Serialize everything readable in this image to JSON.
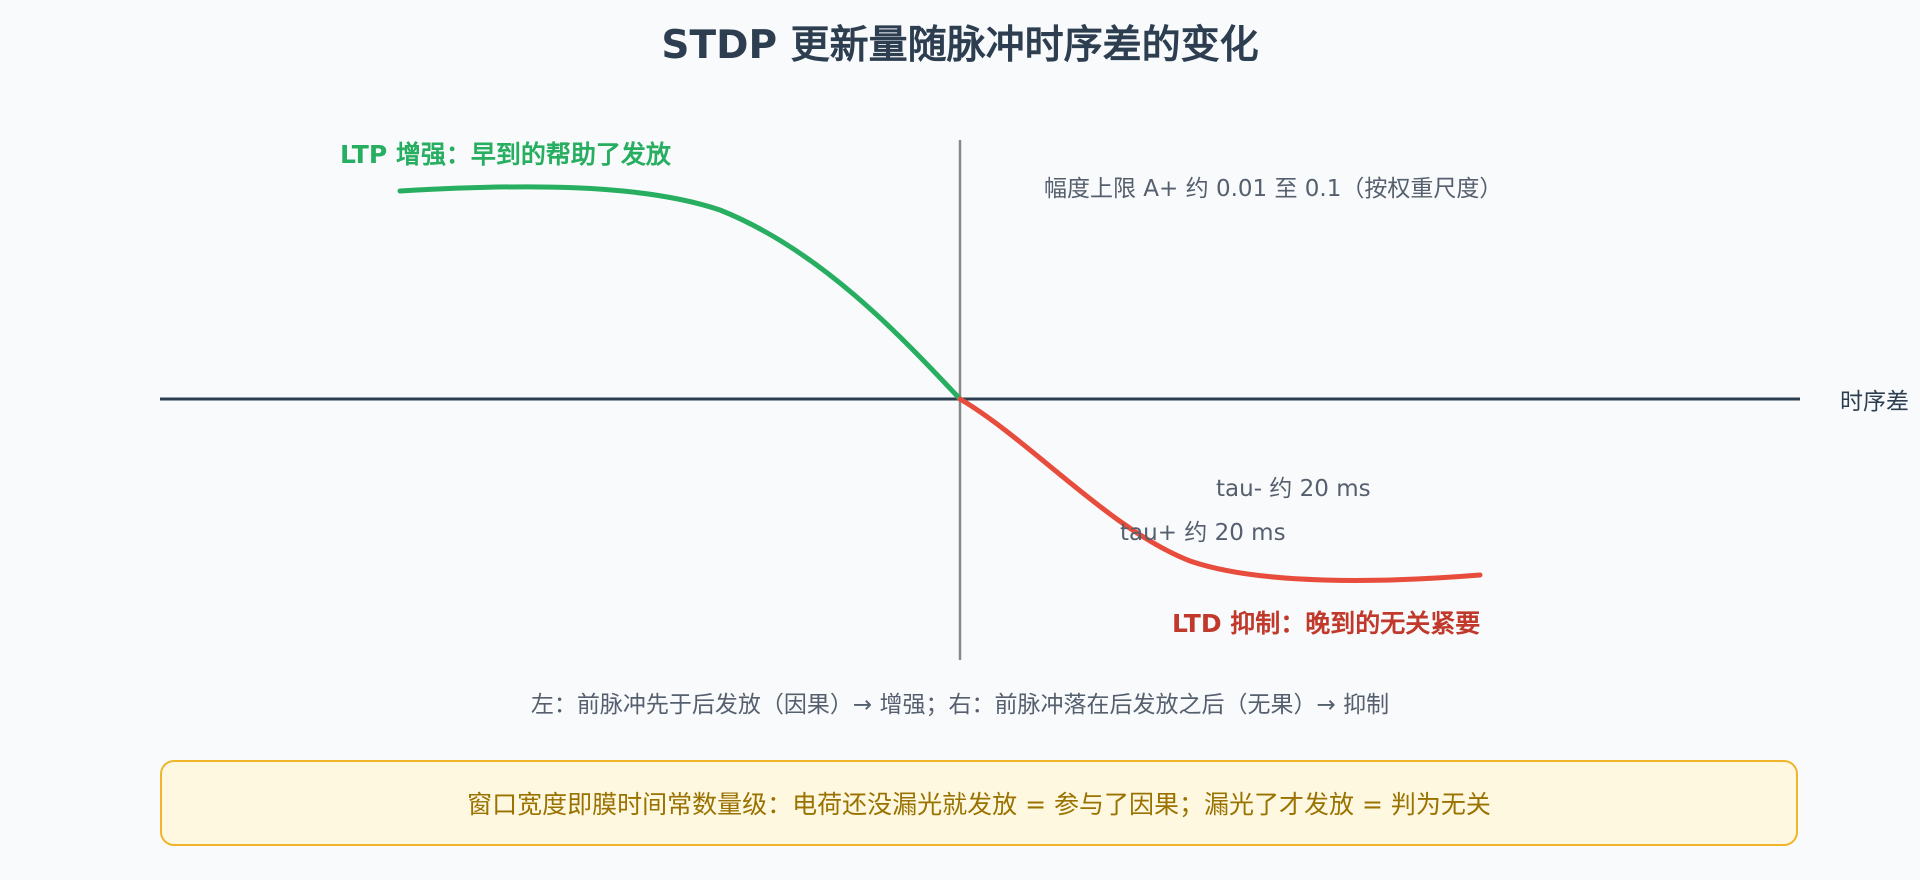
{
  "title": "STDP 更新量随脉冲时序差的变化",
  "axis": {
    "x_label": "时序差"
  },
  "labels": {
    "ltp": "LTP 增强：早到的帮助了发放",
    "ltd": "LTD 抑制：晚到的无关紧要",
    "amplitude": "幅度上限 A+ 约 0.01 至 0.1（按权重尺度）",
    "tau_minus": "tau- 约 20 ms",
    "tau_plus": "tau+ 约 20 ms"
  },
  "caption": "左：前脉冲先于后发放（因果）→ 增强；右：前脉冲落在后发放之后（无果）→ 抑制",
  "note": "窗口宽度即膜时间常数量级：电荷还没漏光就发放 = 参与了因果；漏光了才发放 = 判为无关",
  "colors": {
    "ltp": "#27ae60",
    "ltd": "#e74c3c",
    "axis": "#2c3e50",
    "vertical": "#888888",
    "annotation": "#555f6d",
    "note_border": "#f0b429",
    "note_bg": "#fff8e1",
    "note_text": "#9a7200"
  }
}
